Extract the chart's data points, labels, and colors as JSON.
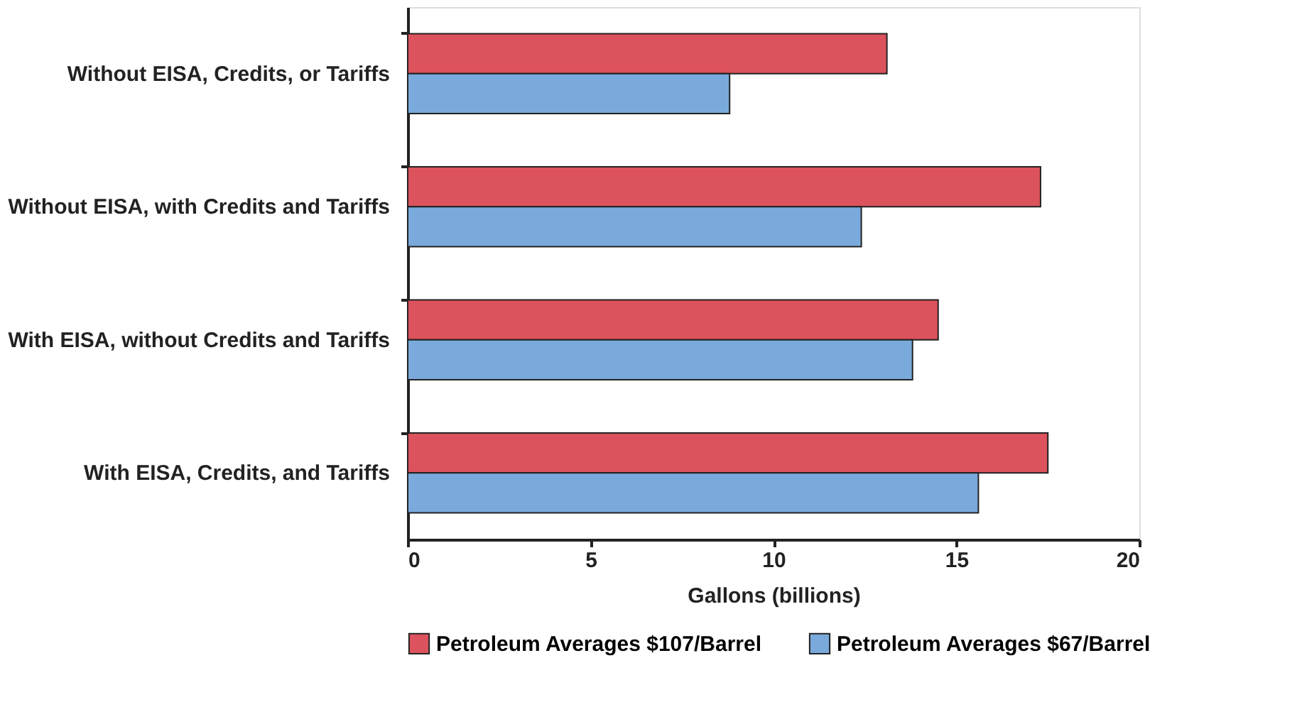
{
  "chart_data": {
    "type": "bar",
    "orientation": "horizontal",
    "xlabel": "Gallons (billions)",
    "categories": [
      "Without EISA, Credits, or Tariffs",
      "Without EISA, with Credits and Tariffs",
      "With EISA, without Credits and Tariffs",
      "With EISA, Credits, and Tariffs"
    ],
    "series": [
      {
        "name": "Petroleum Averages $107/Barrel",
        "color": "#dc535d",
        "values": [
          13.1,
          17.3,
          14.5,
          17.5
        ]
      },
      {
        "name": "Petroleum Averages $67/Barrel",
        "color": "#7aaadb",
        "values": [
          8.8,
          12.4,
          13.8,
          15.6
        ]
      }
    ],
    "xlim": [
      0,
      20
    ],
    "xticks": [
      0,
      5,
      10,
      15,
      20
    ],
    "grid": false,
    "legend": "bottom"
  }
}
